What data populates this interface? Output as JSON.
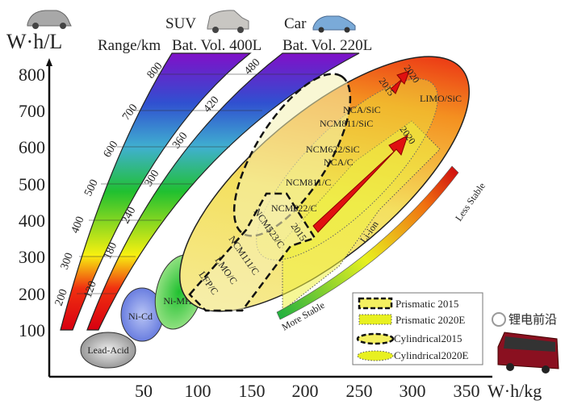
{
  "y_axis": {
    "unit": "W·h/L",
    "ticks": [
      "800",
      "700",
      "600",
      "500",
      "400",
      "300",
      "200",
      "100"
    ]
  },
  "x_axis": {
    "unit": "W·h/kg",
    "ticks": [
      "50",
      "100",
      "150",
      "200",
      "250",
      "300",
      "350"
    ]
  },
  "header": {
    "suv": "SUV",
    "car": "Car",
    "range": "Range/km",
    "suv_vol": "Bat. Vol. 400L",
    "car_vol": "Bat. Vol. 220L"
  },
  "suv_band_labels": [
    "200",
    "300",
    "400",
    "500",
    "600",
    "700",
    "800"
  ],
  "car_band_labels": [
    "120",
    "180",
    "240",
    "300",
    "360",
    "420",
    "480"
  ],
  "chemistries": {
    "lead_acid": "Lead-Acid",
    "ni_cd": "Ni-Cd",
    "ni_mh": "Ni-MH",
    "li_ion": "Li-ion",
    "lfp": "LFP/C",
    "lmo": "LMO/C",
    "ncm111": "NCM111/C",
    "ncm523": "NCM523/C",
    "ncm622": "NCM622/C",
    "ncm811": "NCM811/C",
    "ncm622sic": "NCM622/SiC",
    "nca_c": "NCA/C",
    "ncm811sic": "NCM811/SiC",
    "nca_sic": "NCA/SiC",
    "limo": "LIMO/SiC"
  },
  "years": {
    "p2015": "2015",
    "p2020": "2020",
    "c2015": "2015",
    "c2020": "2020"
  },
  "stability": {
    "more": "More Stable",
    "less": "Less Stable"
  },
  "legend": [
    {
      "label": "Prismatic   2015"
    },
    {
      "label": "Prismatic   2020E"
    },
    {
      "label": "Cylindrical2015"
    },
    {
      "label": "Cylindrical2020E"
    }
  ],
  "watermark": "锂电前沿",
  "colors": {
    "red": "#e01010",
    "yellow": "#f4f060",
    "purple": "#7a1ac8",
    "green": "#2bbf3a",
    "blue": "#3a5ad8"
  }
}
